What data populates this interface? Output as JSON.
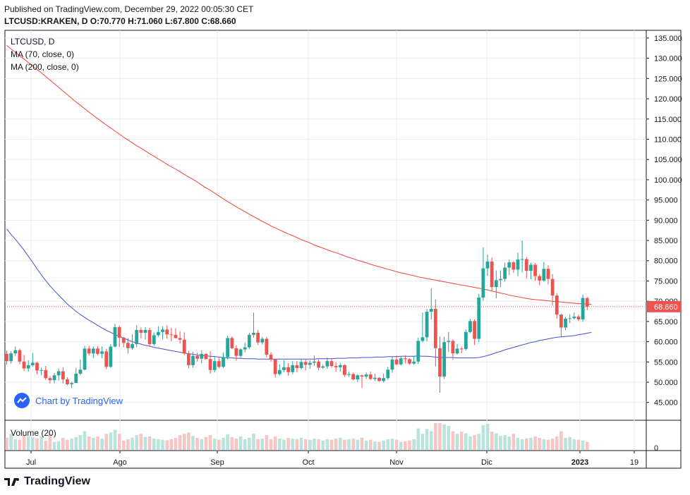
{
  "header": {
    "published": "Published on TradingView.com, December 29, 2022 00:05:30 CET",
    "ohlc": "LTCUSD:KRAKEN, D  O:70.770 H:71.060 L:67.800 C:68.660"
  },
  "legend": {
    "symbol": "LTCUSD, D",
    "ma70": "MA (70, close, 0)",
    "ma200": "MA (200, close, 0)",
    "volume": "Volume (20)"
  },
  "watermark": "Chart by TradingView",
  "footer": "TradingView",
  "colors": {
    "up": "#26a69a",
    "down": "#ef5350",
    "ma70": "#f44336",
    "ma200": "#3f51d6",
    "grid": "#e9eef4",
    "price_tag": "#ef5350"
  },
  "chart_data": {
    "type": "candlestick",
    "symbol": "LTCUSD",
    "timeframe": "D",
    "y_ticks": [
      "135.000",
      "130.000",
      "125.000",
      "120.000",
      "115.000",
      "110.000",
      "105.000",
      "100.000",
      "95.000",
      "90.000",
      "85.000",
      "80.000",
      "75.000",
      "70.000",
      "65.000",
      "60.000",
      "55.000",
      "50.000",
      "45.000"
    ],
    "ylim": [
      40.6,
      136.9
    ],
    "x_ticks": [
      "Jul",
      "Ago",
      "Sep",
      "Oct",
      "Nov",
      "Dic",
      "2023",
      "19"
    ],
    "last_price_label": "68.660",
    "volume_tick": "0",
    "candles": [
      [
        57.0,
        57.8,
        54.3,
        55.2
      ],
      [
        55.2,
        57.6,
        54.6,
        57.1
      ],
      [
        57.1,
        58.8,
        56.5,
        57.9
      ],
      [
        57.9,
        58.3,
        54.4,
        55.1
      ],
      [
        55.1,
        56.7,
        52.7,
        53.4
      ],
      [
        53.4,
        55.4,
        52.6,
        54.2
      ],
      [
        54.2,
        57.2,
        53.8,
        54.8
      ],
      [
        54.8,
        55.0,
        51.9,
        52.9
      ],
      [
        52.9,
        53.6,
        51.7,
        53.0
      ],
      [
        53.0,
        54.0,
        50.6,
        51.0
      ],
      [
        51.0,
        51.5,
        49.7,
        50.5
      ],
      [
        50.5,
        52.3,
        49.7,
        51.7
      ],
      [
        51.7,
        53.4,
        50.4,
        52.7
      ],
      [
        52.7,
        53.7,
        49.7,
        50.7
      ],
      [
        50.7,
        51.2,
        49.2,
        49.5
      ],
      [
        49.5,
        50.1,
        48.6,
        49.8
      ],
      [
        49.8,
        53.5,
        49.8,
        52.1
      ],
      [
        52.1,
        55.6,
        51.7,
        53.1
      ],
      [
        53.1,
        59.0,
        52.9,
        58.3
      ],
      [
        58.3,
        59.0,
        56.6,
        57.1
      ],
      [
        57.1,
        58.8,
        55.9,
        58.3
      ],
      [
        58.3,
        58.9,
        56.6,
        57.0
      ],
      [
        57.0,
        58.8,
        55.9,
        57.6
      ],
      [
        57.6,
        58.2,
        53.2,
        53.8
      ],
      [
        53.8,
        59.4,
        53.5,
        58.8
      ],
      [
        58.8,
        64.4,
        58.6,
        63.6
      ],
      [
        63.6,
        64.0,
        58.7,
        61.0
      ],
      [
        61.0,
        61.2,
        58.6,
        59.7
      ],
      [
        59.7,
        60.9,
        57.1,
        58.4
      ],
      [
        58.4,
        61.9,
        58.0,
        59.4
      ],
      [
        59.4,
        64.1,
        58.6,
        62.9
      ],
      [
        62.9,
        63.5,
        60.8,
        62.2
      ],
      [
        62.2,
        63.6,
        60.5,
        62.9
      ],
      [
        62.9,
        63.4,
        58.7,
        59.4
      ],
      [
        59.4,
        62.3,
        59.0,
        61.6
      ],
      [
        61.6,
        63.8,
        61.2,
        62.4
      ],
      [
        62.4,
        63.8,
        60.6,
        63.0
      ],
      [
        63.0,
        64.0,
        60.7,
        61.8
      ],
      [
        61.8,
        63.4,
        60.1,
        61.7
      ],
      [
        61.7,
        63.3,
        60.8,
        60.9
      ],
      [
        60.9,
        62.6,
        59.6,
        60.5
      ],
      [
        60.5,
        62.3,
        56.7,
        57.1
      ],
      [
        57.1,
        57.8,
        53.4,
        54.2
      ],
      [
        54.2,
        57.5,
        53.6,
        56.5
      ],
      [
        56.5,
        57.3,
        55.1,
        55.8
      ],
      [
        55.8,
        57.9,
        54.7,
        57.0
      ],
      [
        57.0,
        57.1,
        55.6,
        55.7
      ],
      [
        55.7,
        57.7,
        52.1,
        53.0
      ],
      [
        53.0,
        56.2,
        52.4,
        55.2
      ],
      [
        55.2,
        56.0,
        53.4,
        53.8
      ],
      [
        53.8,
        57.3,
        53.5,
        56.2
      ],
      [
        56.2,
        61.5,
        55.6,
        60.9
      ],
      [
        60.9,
        61.3,
        58.2,
        58.4
      ],
      [
        58.4,
        59.1,
        55.3,
        56.5
      ],
      [
        56.5,
        58.4,
        56.0,
        58.1
      ],
      [
        58.1,
        59.8,
        57.4,
        58.6
      ],
      [
        58.6,
        62.2,
        58.2,
        61.7
      ],
      [
        61.7,
        67.2,
        61.0,
        62.2
      ],
      [
        62.2,
        62.9,
        59.2,
        59.8
      ],
      [
        59.8,
        61.2,
        59.3,
        60.7
      ],
      [
        60.7,
        61.2,
        56.1,
        56.8
      ],
      [
        56.8,
        57.4,
        55.1,
        55.6
      ],
      [
        55.6,
        55.8,
        51.1,
        52.0
      ],
      [
        52.0,
        54.4,
        51.6,
        53.0
      ],
      [
        53.0,
        55.4,
        52.5,
        53.7
      ],
      [
        53.7,
        54.7,
        51.6,
        52.5
      ],
      [
        52.5,
        55.2,
        52.0,
        54.2
      ],
      [
        54.2,
        55.2,
        52.4,
        53.5
      ],
      [
        53.5,
        55.8,
        53.1,
        55.0
      ],
      [
        55.0,
        55.7,
        52.9,
        54.3
      ],
      [
        54.3,
        55.4,
        53.3,
        54.8
      ],
      [
        54.8,
        56.6,
        54.1,
        55.1
      ],
      [
        55.1,
        55.6,
        52.9,
        53.6
      ],
      [
        53.6,
        54.3,
        53.3,
        53.9
      ],
      [
        53.9,
        56.1,
        53.3,
        55.2
      ],
      [
        55.2,
        56.0,
        53.6,
        54.0
      ],
      [
        54.0,
        54.9,
        52.6,
        53.7
      ],
      [
        53.7,
        54.8,
        52.6,
        54.2
      ],
      [
        54.2,
        54.4,
        51.3,
        51.8
      ],
      [
        51.8,
        52.6,
        51.3,
        52.0
      ],
      [
        52.0,
        52.4,
        50.5,
        50.7
      ],
      [
        50.7,
        52.0,
        50.1,
        51.7
      ],
      [
        51.7,
        51.8,
        48.6,
        51.4
      ],
      [
        51.4,
        52.4,
        50.8,
        51.9
      ],
      [
        51.9,
        52.6,
        50.5,
        50.8
      ],
      [
        50.8,
        52.1,
        50.3,
        51.1
      ],
      [
        51.1,
        51.2,
        50.1,
        50.3
      ],
      [
        50.3,
        52.2,
        49.9,
        51.0
      ],
      [
        51.0,
        53.8,
        50.6,
        53.1
      ],
      [
        53.1,
        56.3,
        52.3,
        55.6
      ],
      [
        55.6,
        56.6,
        54.2,
        54.4
      ],
      [
        54.4,
        56.3,
        54.1,
        55.9
      ],
      [
        55.9,
        56.7,
        54.7,
        55.7
      ],
      [
        55.7,
        55.9,
        54.3,
        54.6
      ],
      [
        54.6,
        56.5,
        54.3,
        55.1
      ],
      [
        55.1,
        61.0,
        54.5,
        60.2
      ],
      [
        60.2,
        67.2,
        59.8,
        61.1
      ],
      [
        61.1,
        68.1,
        60.1,
        67.4
      ],
      [
        67.4,
        73.2,
        65.5,
        68.1
      ],
      [
        68.1,
        70.4,
        53.9,
        58.4
      ],
      [
        58.4,
        61.3,
        47.4,
        51.4
      ],
      [
        51.4,
        61.2,
        50.8,
        59.9
      ],
      [
        59.9,
        62.4,
        57.5,
        60.2
      ],
      [
        60.2,
        60.6,
        55.5,
        57.1
      ],
      [
        57.1,
        59.5,
        56.8,
        58.3
      ],
      [
        58.3,
        58.8,
        57.2,
        58.2
      ],
      [
        58.2,
        63.0,
        57.8,
        62.4
      ],
      [
        62.4,
        65.6,
        62.1,
        65.1
      ],
      [
        65.1,
        65.5,
        59.2,
        60.7
      ],
      [
        60.7,
        71.8,
        59.9,
        70.9
      ],
      [
        70.9,
        83.3,
        70.1,
        78.1
      ],
      [
        78.1,
        81.5,
        76.3,
        79.8
      ],
      [
        79.8,
        80.8,
        72.6,
        73.5
      ],
      [
        73.5,
        77.6,
        70.7,
        75.2
      ],
      [
        75.2,
        77.6,
        73.5,
        75.5
      ],
      [
        75.5,
        79.5,
        74.8,
        78.3
      ],
      [
        78.3,
        80.3,
        76.5,
        79.6
      ],
      [
        79.6,
        79.9,
        77.0,
        77.8
      ],
      [
        77.8,
        82.0,
        76.2,
        80.3
      ],
      [
        80.3,
        85.0,
        77.1,
        80.4
      ],
      [
        80.4,
        80.9,
        75.6,
        77.5
      ],
      [
        77.5,
        79.5,
        75.4,
        79.0
      ],
      [
        79.0,
        79.4,
        75.1,
        76.2
      ],
      [
        76.2,
        76.7,
        73.9,
        75.1
      ],
      [
        75.1,
        79.7,
        74.8,
        78.0
      ],
      [
        78.0,
        78.9,
        74.1,
        75.5
      ],
      [
        75.5,
        76.7,
        68.9,
        71.4
      ],
      [
        71.4,
        72.0,
        65.7,
        66.7
      ],
      [
        66.7,
        66.9,
        61.2,
        63.5
      ],
      [
        63.5,
        66.1,
        62.8,
        65.7
      ],
      [
        65.7,
        66.8,
        64.6,
        65.8
      ],
      [
        65.8,
        67.2,
        65.5,
        66.2
      ],
      [
        66.2,
        66.7,
        65.1,
        65.5
      ],
      [
        65.5,
        71.6,
        64.9,
        70.8
      ],
      [
        70.77,
        71.06,
        67.8,
        68.66
      ]
    ],
    "volume": [
      45,
      60,
      40,
      38,
      55,
      50,
      47,
      43,
      50,
      35,
      60,
      30,
      32,
      45,
      38,
      42,
      48,
      55,
      70,
      50,
      45,
      50,
      42,
      60,
      65,
      75,
      60,
      35,
      40,
      45,
      55,
      60,
      48,
      50,
      42,
      40,
      38,
      36,
      40,
      45,
      55,
      60,
      65,
      52,
      45,
      40,
      48,
      55,
      42,
      38,
      45,
      58,
      48,
      42,
      50,
      40,
      45,
      60,
      40,
      42,
      55,
      40,
      50,
      42,
      38,
      45,
      42,
      40,
      45,
      40,
      38,
      42,
      40,
      35,
      40,
      38,
      42,
      45,
      38,
      40,
      42,
      38,
      45,
      35,
      38,
      32,
      30,
      35,
      40,
      42,
      38,
      30,
      32,
      35,
      40,
      80,
      60,
      78,
      70,
      100,
      100,
      95,
      90,
      70,
      60,
      68,
      62,
      50,
      55,
      60,
      92,
      98,
      68,
      62,
      52,
      55,
      50,
      60,
      45,
      40,
      42,
      45,
      50,
      45,
      40,
      38,
      42,
      50,
      70,
      45,
      48,
      40,
      38,
      35,
      30,
      25
    ],
    "ma70": [
      87.9,
      86.5,
      85.3,
      84.0,
      82.6,
      81.1,
      79.6,
      78.0,
      76.5,
      75.1,
      73.8,
      72.6,
      71.5,
      70.4,
      69.3,
      68.4,
      67.5,
      66.7,
      66.0,
      65.3,
      64.7,
      64.0,
      63.4,
      62.8,
      62.3,
      61.8,
      61.3,
      60.9,
      60.4,
      60.0,
      59.7,
      59.4,
      59.1,
      58.9,
      58.6,
      58.4,
      58.2,
      58.0,
      57.8,
      57.6,
      57.4,
      57.2,
      57.0,
      56.9,
      56.7,
      56.6,
      56.5,
      56.4,
      56.3,
      56.2,
      56.1,
      56.0,
      56.0,
      55.9,
      55.9,
      55.8,
      55.8,
      55.8,
      55.7,
      55.7,
      55.7,
      55.7,
      55.7,
      55.7,
      55.7,
      55.7,
      55.7,
      55.7,
      55.7,
      55.7,
      55.7,
      55.7,
      55.8,
      55.8,
      55.8,
      55.8,
      55.9,
      55.9,
      55.9,
      56.0,
      56.0,
      56.0,
      56.1,
      56.1,
      56.1,
      56.2,
      56.2,
      56.2,
      56.3,
      56.3,
      56.3,
      56.4,
      56.4,
      56.4,
      56.4,
      56.5,
      56.4,
      56.4,
      56.3,
      56.2,
      56.1,
      56.1,
      56.1,
      56.1,
      56.0,
      56.0,
      56.0,
      56.0,
      56.0,
      56.1,
      56.3,
      56.6,
      56.9,
      57.3,
      57.6,
      58.0,
      58.3,
      58.6,
      58.9,
      59.2,
      59.5,
      59.8,
      60.0,
      60.3,
      60.5,
      60.7,
      60.9,
      61.1,
      61.2,
      61.3,
      61.4,
      61.5,
      61.7,
      61.9,
      62.1,
      62.3
    ],
    "ma200": [
      133.2,
      132.3,
      131.5,
      130.6,
      129.8,
      128.9,
      128.1,
      127.2,
      126.4,
      125.5,
      124.6,
      123.7,
      122.8,
      121.9,
      121.0,
      120.1,
      119.2,
      118.4,
      117.5,
      116.7,
      115.9,
      115.1,
      114.3,
      113.5,
      112.8,
      112.0,
      111.3,
      110.5,
      109.8,
      109.1,
      108.4,
      107.8,
      107.1,
      106.4,
      105.8,
      105.1,
      104.5,
      103.8,
      103.2,
      102.6,
      102.0,
      101.3,
      100.7,
      100.1,
      99.4,
      98.7,
      98.0,
      97.4,
      96.7,
      96.0,
      95.3,
      94.6,
      94.0,
      93.3,
      92.7,
      92.1,
      91.5,
      90.9,
      90.3,
      89.7,
      89.2,
      88.6,
      88.1,
      87.6,
      87.1,
      86.6,
      86.2,
      85.7,
      85.2,
      84.8,
      84.4,
      83.9,
      83.5,
      83.1,
      82.7,
      82.3,
      82.0,
      81.6,
      81.2,
      80.8,
      80.5,
      80.1,
      79.8,
      79.5,
      79.1,
      78.8,
      78.5,
      78.2,
      77.9,
      77.6,
      77.3,
      77.0,
      76.8,
      76.5,
      76.3,
      76.0,
      75.8,
      75.6,
      75.4,
      75.2,
      75.0,
      74.8,
      74.6,
      74.4,
      74.2,
      74.0,
      73.8,
      73.6,
      73.4,
      73.2,
      73.0,
      72.8,
      72.5,
      72.3,
      72.0,
      71.8,
      71.5,
      71.3,
      71.1,
      70.9,
      70.7,
      70.5,
      70.4,
      70.3,
      70.2,
      70.1,
      70.0,
      69.9,
      69.8,
      69.7,
      69.6,
      69.5,
      69.4,
      69.4,
      69.3,
      69.2
    ]
  }
}
